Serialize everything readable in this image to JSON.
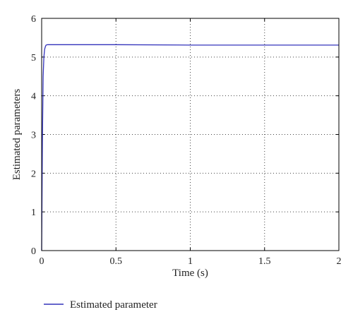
{
  "chart_data": {
    "type": "line",
    "title": "",
    "xlabel": "Time (s)",
    "ylabel": "Estimated parameters",
    "xlim": [
      0,
      2
    ],
    "ylim": [
      0,
      6
    ],
    "xticks": [
      0,
      0.5,
      1,
      1.5,
      2
    ],
    "xtick_labels": [
      "0",
      "0.5",
      "1",
      "1.5",
      "2"
    ],
    "yticks": [
      0,
      1,
      2,
      3,
      4,
      5,
      6
    ],
    "ytick_labels": [
      "0",
      "1",
      "2",
      "3",
      "4",
      "5",
      "6"
    ],
    "grid": true,
    "legend_position": "bottom-left, below plot",
    "series": [
      {
        "name": "Estimated parameter",
        "color": "#3333bb",
        "x": [
          0,
          0.005,
          0.01,
          0.015,
          0.02,
          0.025,
          0.03,
          0.04,
          0.06,
          0.1,
          0.3,
          0.5,
          1.0,
          1.5,
          2.0
        ],
        "y": [
          0,
          2.8,
          4.5,
          5.0,
          5.2,
          5.27,
          5.31,
          5.32,
          5.32,
          5.32,
          5.32,
          5.32,
          5.31,
          5.31,
          5.31
        ]
      }
    ]
  }
}
